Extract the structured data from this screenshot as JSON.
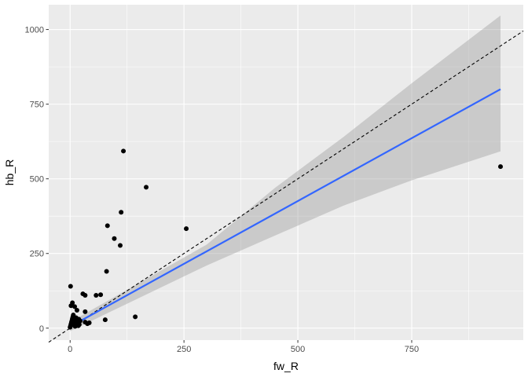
{
  "chart_data": {
    "type": "scatter",
    "xlabel": "fw_R",
    "ylabel": "hb_R",
    "xlim": [
      -47,
      995
    ],
    "ylim": [
      -40,
      1083
    ],
    "x_ticks": [
      0,
      250,
      500,
      750
    ],
    "y_ticks": [
      0,
      250,
      500,
      750,
      1000
    ],
    "x_tick_labels": [
      "0",
      "250",
      "500",
      "750"
    ],
    "y_tick_labels": [
      "0",
      "250",
      "500",
      "750",
      "1000"
    ],
    "grid": true,
    "legend": "none",
    "points": [
      {
        "x": 0,
        "y": 3
      },
      {
        "x": 1,
        "y": 8
      },
      {
        "x": 2,
        "y": 14
      },
      {
        "x": 3,
        "y": 20
      },
      {
        "x": 4,
        "y": 25
      },
      {
        "x": 5,
        "y": 32
      },
      {
        "x": 6,
        "y": 38
      },
      {
        "x": 7,
        "y": 44
      },
      {
        "x": 8,
        "y": 12
      },
      {
        "x": 9,
        "y": 28
      },
      {
        "x": 10,
        "y": 18
      },
      {
        "x": 11,
        "y": 6
      },
      {
        "x": 12,
        "y": 22
      },
      {
        "x": 13,
        "y": 35
      },
      {
        "x": 14,
        "y": 10
      },
      {
        "x": 15,
        "y": 16
      },
      {
        "x": 16,
        "y": 26
      },
      {
        "x": 18,
        "y": 8
      },
      {
        "x": 19,
        "y": 30
      },
      {
        "x": 20,
        "y": 12
      },
      {
        "x": 22,
        "y": 24
      },
      {
        "x": 1,
        "y": 140
      },
      {
        "x": 2,
        "y": 75
      },
      {
        "x": 5,
        "y": 85
      },
      {
        "x": 10,
        "y": 72
      },
      {
        "x": 15,
        "y": 60
      },
      {
        "x": 28,
        "y": 115
      },
      {
        "x": 33,
        "y": 110
      },
      {
        "x": 33,
        "y": 55
      },
      {
        "x": 33,
        "y": 20
      },
      {
        "x": 38,
        "y": 15
      },
      {
        "x": 42,
        "y": 18
      },
      {
        "x": 57,
        "y": 110
      },
      {
        "x": 67,
        "y": 112
      },
      {
        "x": 77,
        "y": 28
      },
      {
        "x": 80,
        "y": 190
      },
      {
        "x": 82,
        "y": 343
      },
      {
        "x": 97,
        "y": 300
      },
      {
        "x": 110,
        "y": 277
      },
      {
        "x": 112,
        "y": 388
      },
      {
        "x": 117,
        "y": 593
      },
      {
        "x": 143,
        "y": 38
      },
      {
        "x": 167,
        "y": 472
      },
      {
        "x": 255,
        "y": 333
      },
      {
        "x": 945,
        "y": 541
      }
    ],
    "fit_line": {
      "x": [
        0,
        945
      ],
      "y": [
        5,
        800
      ]
    },
    "confidence_band": {
      "x": [
        0,
        150,
        300,
        450,
        600,
        750,
        945
      ],
      "lower": [
        -10,
        100,
        210,
        310,
        410,
        495,
        592
      ],
      "upper": [
        20,
        150,
        280,
        470,
        640,
        820,
        1047
      ]
    },
    "reference_line": {
      "slope": 1,
      "intercept": 0,
      "style": "dashed"
    },
    "colors": {
      "points": "#000000",
      "fit_line": "#3366ff",
      "band": "#999999",
      "panel": "#ebebeb",
      "grid": "#ffffff"
    }
  }
}
